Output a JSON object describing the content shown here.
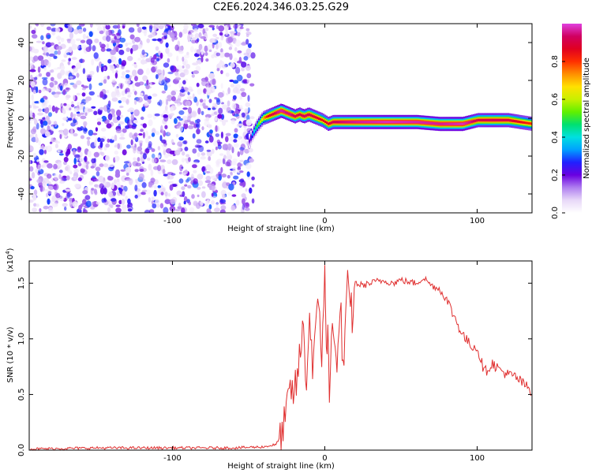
{
  "title": "C2E6.2024.346.03.25.G29",
  "chart_data": [
    {
      "type": "heatmap",
      "xlabel": "Height of straight line (km)",
      "ylabel": "Frequency (Hz)",
      "xlim": [
        -194,
        136
      ],
      "ylim": [
        -50,
        50
      ],
      "xticks": [
        -100,
        0,
        100
      ],
      "yticks": [
        -40,
        -20,
        0,
        20,
        40
      ],
      "noise_region": {
        "x_from": -194,
        "x_to": -47,
        "description_level": "low amplitude (0.05-0.25)"
      },
      "ridge": {
        "x": [
          -50,
          -47,
          -44,
          -41,
          -38,
          -35,
          -32,
          -29,
          -26,
          -23,
          -20,
          -17,
          -14,
          -11,
          -8,
          -5,
          -2,
          0,
          2,
          5,
          10,
          20,
          40,
          60,
          75,
          90,
          95,
          100,
          110,
          120,
          136
        ],
        "freq": [
          -12,
          -7,
          -3,
          0,
          1,
          2,
          3,
          4,
          3,
          2,
          1,
          2,
          1,
          2,
          1,
          0,
          -1,
          -2,
          -3,
          -2,
          -2,
          -2,
          -2,
          -2,
          -3,
          -3,
          -2,
          -1,
          -1,
          -1,
          -3
        ],
        "amplitude": [
          0.2,
          0.4,
          0.55,
          0.7,
          0.85,
          0.9,
          0.95,
          0.97,
          0.95,
          0.95,
          0.92,
          0.9,
          0.93,
          0.92,
          0.9,
          0.88,
          0.85,
          0.86,
          0.9,
          0.92,
          0.94,
          0.96,
          0.98,
          0.97,
          0.96,
          0.98,
          0.95,
          0.9,
          0.92,
          0.9,
          0.8
        ]
      },
      "colorbar": {
        "label": "Normalized spectral amplitude",
        "range": [
          0,
          1
        ],
        "ticks": [
          "0.0",
          "0.2",
          "0.4",
          "0.6",
          "0.8"
        ],
        "tick_values": [
          0,
          0.2,
          0.4,
          0.6,
          0.8
        ],
        "colors": [
          "#ffffff",
          "#e8d8f8",
          "#b080f0",
          "#6a00e0",
          "#2020ff",
          "#00a0ff",
          "#00e0e0",
          "#00e070",
          "#60f000",
          "#c8f000",
          "#ffe000",
          "#ff9000",
          "#ff3000",
          "#e00020",
          "#d00060",
          "#e040e0"
        ]
      }
    },
    {
      "type": "line",
      "xlabel": "Height of straight line (km)",
      "ylabel": "SNR (10 * v/v)",
      "multiplier": "(x10",
      "multiplier_exp": "4",
      "multiplier_close": ")",
      "xlim": [
        -194,
        136
      ],
      "ylim": [
        0,
        1.7
      ],
      "xticks": [
        -100,
        0,
        100
      ],
      "yticks": [
        "0.0",
        "0.5",
        "1.0",
        "1.5"
      ],
      "ytick_values": [
        0,
        0.5,
        1.0,
        1.5
      ],
      "line_color": "#e03030",
      "series": [
        {
          "x": [
            -194,
            -150,
            -100,
            -60,
            -40,
            -32,
            -28,
            -26,
            -24,
            -22,
            -20,
            -18,
            -16,
            -14,
            -12,
            -10,
            -8,
            -6,
            -4,
            -2,
            0,
            1,
            2,
            3,
            5,
            8,
            10,
            12,
            15,
            18,
            20,
            25,
            30,
            35,
            40,
            45,
            50,
            55,
            60,
            65,
            70,
            75,
            80,
            85,
            90,
            95,
            100,
            105,
            110,
            115,
            120,
            125,
            130,
            136
          ],
          "y": [
            0.01,
            0.02,
            0.02,
            0.02,
            0.03,
            0.05,
            0.15,
            0.25,
            0.45,
            0.55,
            0.5,
            0.65,
            0.9,
            1.1,
            0.6,
            1.2,
            0.8,
            1.0,
            1.35,
            0.85,
            1.7,
            0.8,
            1.1,
            0.38,
            1.3,
            0.6,
            1.4,
            0.7,
            1.45,
            1.2,
            1.5,
            1.48,
            1.5,
            1.52,
            1.52,
            1.5,
            1.53,
            1.51,
            1.5,
            1.55,
            1.48,
            1.45,
            1.35,
            1.2,
            1.05,
            0.95,
            0.92,
            0.7,
            0.78,
            0.72,
            0.68,
            0.66,
            0.6,
            0.53
          ]
        }
      ]
    }
  ]
}
